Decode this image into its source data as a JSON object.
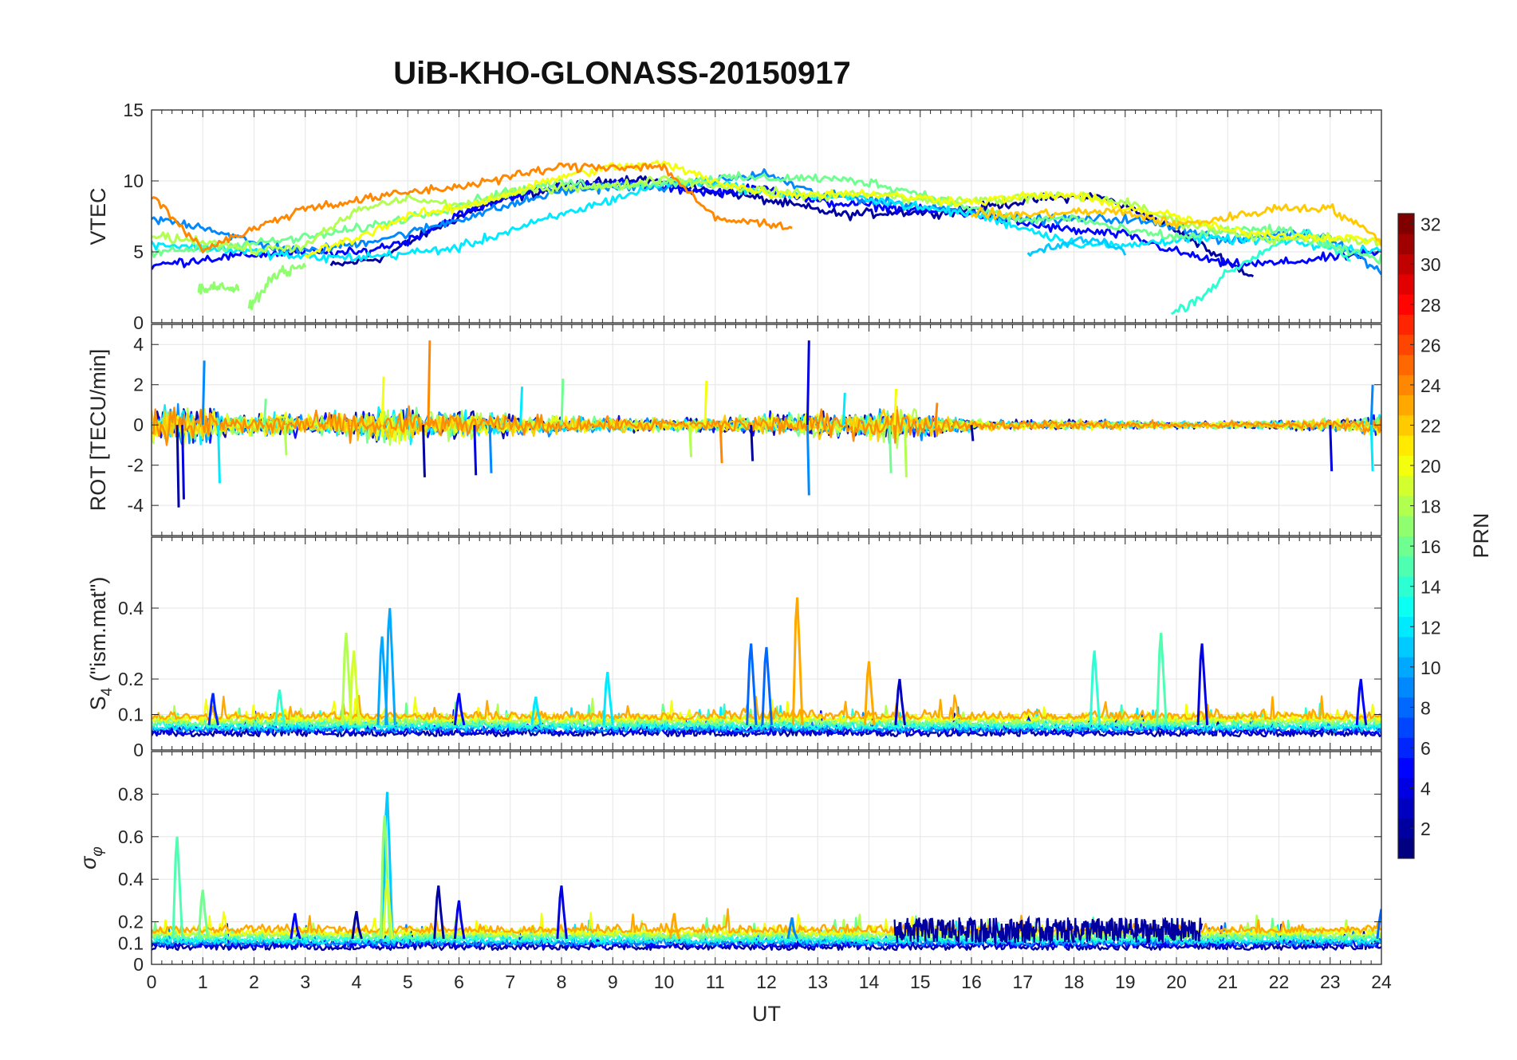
{
  "chart_data": {
    "type": "line",
    "title": "UiB-KHO-GLONASS-20150917",
    "xlabel": "UT",
    "xlim": [
      0,
      24
    ],
    "x_ticks": [
      "0",
      "1",
      "2",
      "3",
      "4",
      "5",
      "6",
      "7",
      "8",
      "9",
      "10",
      "11",
      "12",
      "13",
      "14",
      "15",
      "16",
      "17",
      "18",
      "19",
      "20",
      "21",
      "22",
      "23",
      "24"
    ],
    "grid": true,
    "colorbar": {
      "label": "PRN",
      "range": [
        1,
        32
      ],
      "ticks": [
        "2",
        "4",
        "6",
        "8",
        "10",
        "12",
        "14",
        "16",
        "18",
        "20",
        "22",
        "24",
        "26",
        "28",
        "30",
        "32"
      ],
      "colormap": "jet"
    },
    "panels": [
      {
        "name": "vtec",
        "ylabel": "VTEC",
        "ylim": [
          0,
          15
        ],
        "y_ticks": [
          0,
          5,
          10,
          15
        ],
        "y_tick_labels": [
          "0",
          "5",
          "10",
          "15"
        ],
        "series": [
          {
            "prn": 2,
            "kind": "trend",
            "x": [
              3.5,
              4.5,
              5.5,
              6.5,
              7.5,
              8.5,
              9.5,
              10.5,
              11.5,
              12.5,
              13.5,
              14.5,
              15.5,
              16.5,
              17.5,
              18.5,
              19.5,
              20.5,
              21.5
            ],
            "y": [
              4,
              4.6,
              6.6,
              8.3,
              9.2,
              9.8,
              10.2,
              9.5,
              9.0,
              8.3,
              7.6,
              7.8,
              7.8,
              8.3,
              8.8,
              8.9,
              7.5,
              5.4,
              3.2
            ]
          },
          {
            "prn": 5,
            "kind": "trend",
            "x": [
              0.0,
              1.0,
              2.0,
              3.0,
              4.0,
              5.0,
              6.0,
              7.0,
              8.0,
              9.0,
              10.0,
              11.0,
              12.0,
              13.0,
              14.0,
              15.0,
              16.0,
              17.0,
              18.0,
              19.0,
              20.0,
              21.0,
              22.0,
              23.0,
              24.0
            ],
            "y": [
              4.0,
              4.5,
              4.8,
              5.0,
              4.9,
              5.8,
              7.6,
              8.9,
              9.7,
              9.9,
              9.5,
              9.2,
              9.5,
              8.5,
              8.3,
              7.9,
              7.7,
              7.0,
              6.5,
              6.2,
              5.0,
              4.1,
              4.2,
              4.6,
              4.9
            ]
          },
          {
            "prn": 9,
            "kind": "trend",
            "x": [
              0.0,
              1.0,
              2.0,
              3.0,
              4.0,
              5.0,
              6.0,
              7.0,
              8.0,
              9.0,
              10.0,
              11.0,
              12.0,
              13.0,
              14.0,
              15.0,
              16.0,
              17.0,
              18.0,
              19.0,
              20.0,
              21.0,
              22.0,
              23.0,
              24.0
            ],
            "y": [
              7.3,
              6.8,
              5.6,
              5.0,
              5.6,
              6.3,
              7.3,
              8.3,
              9.3,
              9.6,
              9.6,
              10.0,
              10.5,
              9.0,
              8.7,
              8.2,
              7.9,
              7.3,
              7.3,
              7.3,
              6.8,
              5.7,
              6.3,
              6.1,
              3.5
            ]
          },
          {
            "prn": 12,
            "kind": "trend",
            "x": [
              0.0,
              1.0,
              2.0,
              3.0,
              4.0,
              5.0,
              6.0,
              7.0,
              8.0,
              9.0,
              10.0,
              11.0,
              12.0,
              13.0,
              14.0,
              15.0,
              16.0,
              17.0,
              18.0,
              19.0,
              20.0,
              21.0,
              22.0,
              23.0,
              24.0
            ],
            "y": [
              5.6,
              5.3,
              5.0,
              4.6,
              4.6,
              4.9,
              5.3,
              6.5,
              7.6,
              8.7,
              9.8,
              9.9,
              9.1,
              8.9,
              8.8,
              8.1,
              7.7,
              6.7,
              5.6,
              5.4,
              5.9,
              5.9,
              5.8,
              5.3,
              5.1
            ]
          },
          {
            "prn": 14,
            "kind": "trend",
            "x": [
              19.9,
              20.5,
              21.0,
              21.5,
              22.0,
              22.5,
              23.0,
              23.4
            ],
            "y": [
              0.6,
              1.9,
              3.5,
              4.6,
              5.7,
              6.4,
              5.3,
              4.4
            ]
          },
          {
            "prn": 16,
            "kind": "trend",
            "x": [
              0.0,
              1.0,
              2.0,
              3.0,
              4.0,
              5.0,
              6.0,
              7.0,
              8.0,
              9.0,
              10.0,
              11.0,
              12.0,
              13.0,
              14.0,
              15.0,
              16.0,
              17.0,
              18.0,
              19.0,
              20.0,
              21.0,
              22.0,
              23.0,
              24.0
            ],
            "y": [
              4.9,
              5.3,
              5.6,
              6.0,
              6.6,
              7.4,
              8.3,
              9.3,
              9.9,
              9.6,
              9.9,
              10.2,
              10.2,
              10.2,
              9.9,
              9.1,
              8.1,
              7.2,
              7.4,
              6.5,
              6.0,
              6.5,
              6.6,
              5.3,
              4.5
            ]
          },
          {
            "prn": 18,
            "kind": "trend",
            "x": [
              0.0,
              1.0,
              2.0,
              3.0,
              4.0,
              5.0,
              6.0,
              7.0,
              8.0,
              9.0,
              10.0,
              11.0,
              12.0,
              13.0,
              14.0,
              15.0,
              16.0,
              17.0,
              18.0,
              19.0,
              20.0,
              21.0,
              22.0,
              23.0,
              24.0
            ],
            "y": [
              6.1,
              5.8,
              5.1,
              5.4,
              7.9,
              8.8,
              8.2,
              9.1,
              9.6,
              9.6,
              10.2,
              9.7,
              9.3,
              8.9,
              9.2,
              8.6,
              8.6,
              8.8,
              9.0,
              8.5,
              7.1,
              6.5,
              5.8,
              6.0,
              5.6
            ]
          },
          {
            "prn": 20,
            "kind": "trend",
            "x": [
              3.0,
              4.0,
              5.0,
              6.0,
              7.0,
              8.0,
              9.0,
              10.0,
              11.0,
              12.0,
              13.0,
              14.0,
              15.0,
              16.0,
              17.0,
              18.0,
              19.0,
              20.0,
              21.0,
              22.0,
              23.0,
              24.0
            ],
            "y": [
              4.8,
              6.0,
              7.5,
              8.1,
              9.1,
              10.3,
              11.0,
              11.2,
              10.0,
              9.1,
              9.1,
              9.1,
              8.8,
              8.5,
              8.9,
              9.0,
              8.1,
              7.5,
              6.5,
              6.2,
              6.0,
              5.8
            ]
          },
          {
            "prn": 22,
            "kind": "trend",
            "x": [
              16.0,
              17.0,
              18.0,
              19.0,
              20.0,
              21.0,
              22.0,
              23.0,
              24.0
            ],
            "y": [
              7.7,
              7.6,
              7.8,
              7.8,
              6.9,
              7.4,
              8.1,
              8.1,
              5.8
            ]
          },
          {
            "prn": 24,
            "kind": "trend",
            "x": [
              0.0,
              1.0,
              2.0,
              3.0,
              4.0,
              5.0,
              6.0,
              7.0,
              8.0,
              9.0,
              10.0,
              11.0,
              12.0,
              12.5
            ],
            "y": [
              9.0,
              5.2,
              6.6,
              8.1,
              8.6,
              9.2,
              9.6,
              10.3,
              11.0,
              11.0,
              11.0,
              7.3,
              7.0,
              6.8
            ]
          },
          {
            "prn": 17,
            "kind": "segment",
            "x": [
              0.9,
              1.3,
              1.7
            ],
            "y": [
              2.3,
              2.6,
              2.3
            ]
          },
          {
            "prn": 17,
            "kind": "segment",
            "x": [
              1.9,
              2.4,
              3.0
            ],
            "y": [
              1.0,
              3.4,
              4.0
            ]
          },
          {
            "prn": 11,
            "kind": "segment",
            "x": [
              17.1,
              17.5,
              18.0,
              18.5,
              19.0
            ],
            "y": [
              4.8,
              5.3,
              5.7,
              5.9,
              5.0
            ]
          }
        ]
      },
      {
        "name": "rot",
        "ylabel": "ROT [TECU/min]",
        "ylim": [
          -5.5,
          5.0
        ],
        "y_ticks": [
          -4,
          -2,
          0,
          2,
          4
        ],
        "y_tick_labels": [
          "-4",
          "-2",
          "0",
          "2",
          "4"
        ],
        "envelope": {
          "x": [
            0.0,
            0.5,
            1.0,
            1.5,
            2.0,
            2.5,
            3.0,
            3.5,
            4.0,
            4.5,
            5.0,
            5.5,
            6.0,
            6.5,
            7.0,
            7.5,
            8.0,
            8.5,
            9.0,
            9.5,
            10.0,
            10.5,
            11.0,
            11.5,
            12.0,
            12.5,
            13.0,
            13.5,
            14.0,
            14.5,
            15.0,
            15.5,
            16.0,
            16.5,
            17.0,
            17.5,
            18.0,
            18.5,
            19.0,
            19.5,
            20.0,
            20.5,
            21.0,
            21.5,
            22.0,
            22.5,
            23.0,
            23.5,
            24.0
          ],
          "amplitude": [
            1.4,
            1.7,
            1.5,
            1.1,
            0.9,
            1.1,
            0.9,
            1.1,
            1.3,
            1.5,
            1.4,
            1.3,
            1.2,
            1.0,
            0.9,
            0.9,
            0.8,
            0.7,
            0.6,
            0.6,
            0.6,
            0.6,
            0.7,
            0.8,
            0.9,
            1.0,
            1.3,
            1.1,
            1.2,
            1.6,
            1.1,
            0.7,
            0.5,
            0.4,
            0.4,
            0.4,
            0.4,
            0.4,
            0.35,
            0.35,
            0.3,
            0.3,
            0.35,
            0.35,
            0.4,
            0.45,
            0.5,
            0.6,
            1.0
          ]
        },
        "spikes": [
          {
            "x": 0.5,
            "y": -4.1
          },
          {
            "x": 0.6,
            "y": -3.7
          },
          {
            "x": 1.0,
            "y": 3.2
          },
          {
            "x": 1.3,
            "y": -2.9
          },
          {
            "x": 2.2,
            "y": 1.3
          },
          {
            "x": 2.6,
            "y": -1.5
          },
          {
            "x": 4.5,
            "y": 2.4
          },
          {
            "x": 5.4,
            "y": 4.2
          },
          {
            "x": 5.3,
            "y": -2.6
          },
          {
            "x": 6.3,
            "y": -2.5
          },
          {
            "x": 6.6,
            "y": -2.4
          },
          {
            "x": 7.2,
            "y": 1.9
          },
          {
            "x": 8.0,
            "y": 2.3
          },
          {
            "x": 10.5,
            "y": -1.6
          },
          {
            "x": 10.8,
            "y": 2.2
          },
          {
            "x": 11.1,
            "y": -1.9
          },
          {
            "x": 11.7,
            "y": -1.8
          },
          {
            "x": 12.8,
            "y": 4.2
          },
          {
            "x": 12.8,
            "y": -3.5
          },
          {
            "x": 13.5,
            "y": 1.6
          },
          {
            "x": 14.4,
            "y": -2.4
          },
          {
            "x": 14.7,
            "y": -2.6
          },
          {
            "x": 14.5,
            "y": 1.8
          },
          {
            "x": 15.3,
            "y": 1.1
          },
          {
            "x": 16.0,
            "y": -0.8
          },
          {
            "x": 23.0,
            "y": -2.3
          },
          {
            "x": 23.8,
            "y": 2.0
          },
          {
            "x": 23.8,
            "y": -2.3
          }
        ]
      },
      {
        "name": "s4",
        "ylabel_base": "S",
        "ylabel_sub": "4",
        "ylabel_rest": " (\"ism.mat\")",
        "ylim": [
          0,
          0.6
        ],
        "y_ticks": [
          0,
          0.1,
          0.2,
          0.4
        ],
        "y_tick_labels": [
          "0",
          "0.1",
          "0.2",
          "0.4"
        ],
        "baseline": 0.07,
        "noise": 0.025,
        "spikes": [
          {
            "x": 3.8,
            "y": 0.33,
            "prn": 18
          },
          {
            "x": 3.95,
            "y": 0.28,
            "prn": 19
          },
          {
            "x": 4.65,
            "y": 0.4,
            "prn": 10
          },
          {
            "x": 4.5,
            "y": 0.32,
            "prn": 10
          },
          {
            "x": 8.9,
            "y": 0.22,
            "prn": 12
          },
          {
            "x": 11.7,
            "y": 0.3,
            "prn": 8
          },
          {
            "x": 12.0,
            "y": 0.29,
            "prn": 8
          },
          {
            "x": 12.6,
            "y": 0.43,
            "prn": 23
          },
          {
            "x": 14.0,
            "y": 0.25,
            "prn": 23
          },
          {
            "x": 18.4,
            "y": 0.28,
            "prn": 14
          },
          {
            "x": 19.7,
            "y": 0.33,
            "prn": 15
          },
          {
            "x": 20.5,
            "y": 0.3,
            "prn": 4
          },
          {
            "x": 14.6,
            "y": 0.2,
            "prn": 3
          },
          {
            "x": 23.6,
            "y": 0.2,
            "prn": 5
          },
          {
            "x": 2.5,
            "y": 0.17,
            "prn": 14
          },
          {
            "x": 1.2,
            "y": 0.16,
            "prn": 6
          },
          {
            "x": 6.0,
            "y": 0.16,
            "prn": 5
          },
          {
            "x": 7.5,
            "y": 0.15,
            "prn": 12
          }
        ]
      },
      {
        "name": "sigma_phi",
        "ylabel_base": "σ",
        "ylabel_sub": "φ",
        "ylim": [
          0,
          1
        ],
        "y_ticks": [
          0,
          0.1,
          0.2,
          0.4,
          0.6,
          0.8
        ],
        "y_tick_labels": [
          "0",
          "0.1",
          "0.2",
          "0.4",
          "0.6",
          "0.8"
        ],
        "baseline": 0.12,
        "noise": 0.04,
        "spikes": [
          {
            "x": 0.5,
            "y": 0.6,
            "prn": 15
          },
          {
            "x": 1.0,
            "y": 0.35,
            "prn": 16
          },
          {
            "x": 4.6,
            "y": 0.81,
            "prn": 11
          },
          {
            "x": 4.55,
            "y": 0.7,
            "prn": 17
          },
          {
            "x": 4.6,
            "y": 0.4,
            "prn": 19
          },
          {
            "x": 5.6,
            "y": 0.37,
            "prn": 2
          },
          {
            "x": 6.0,
            "y": 0.3,
            "prn": 4
          },
          {
            "x": 8.0,
            "y": 0.37,
            "prn": 4
          },
          {
            "x": 4.0,
            "y": 0.25,
            "prn": 2
          },
          {
            "x": 2.8,
            "y": 0.24,
            "prn": 5
          },
          {
            "x": 10.2,
            "y": 0.24,
            "prn": 23
          },
          {
            "x": 12.5,
            "y": 0.22,
            "prn": 9
          },
          {
            "x": 24.0,
            "y": 0.26,
            "prn": 8
          }
        ],
        "dense_band": {
          "x_start": 14.5,
          "x_end": 20.5,
          "y_low": 0.1,
          "y_high": 0.22,
          "prn": 2
        }
      }
    ]
  }
}
